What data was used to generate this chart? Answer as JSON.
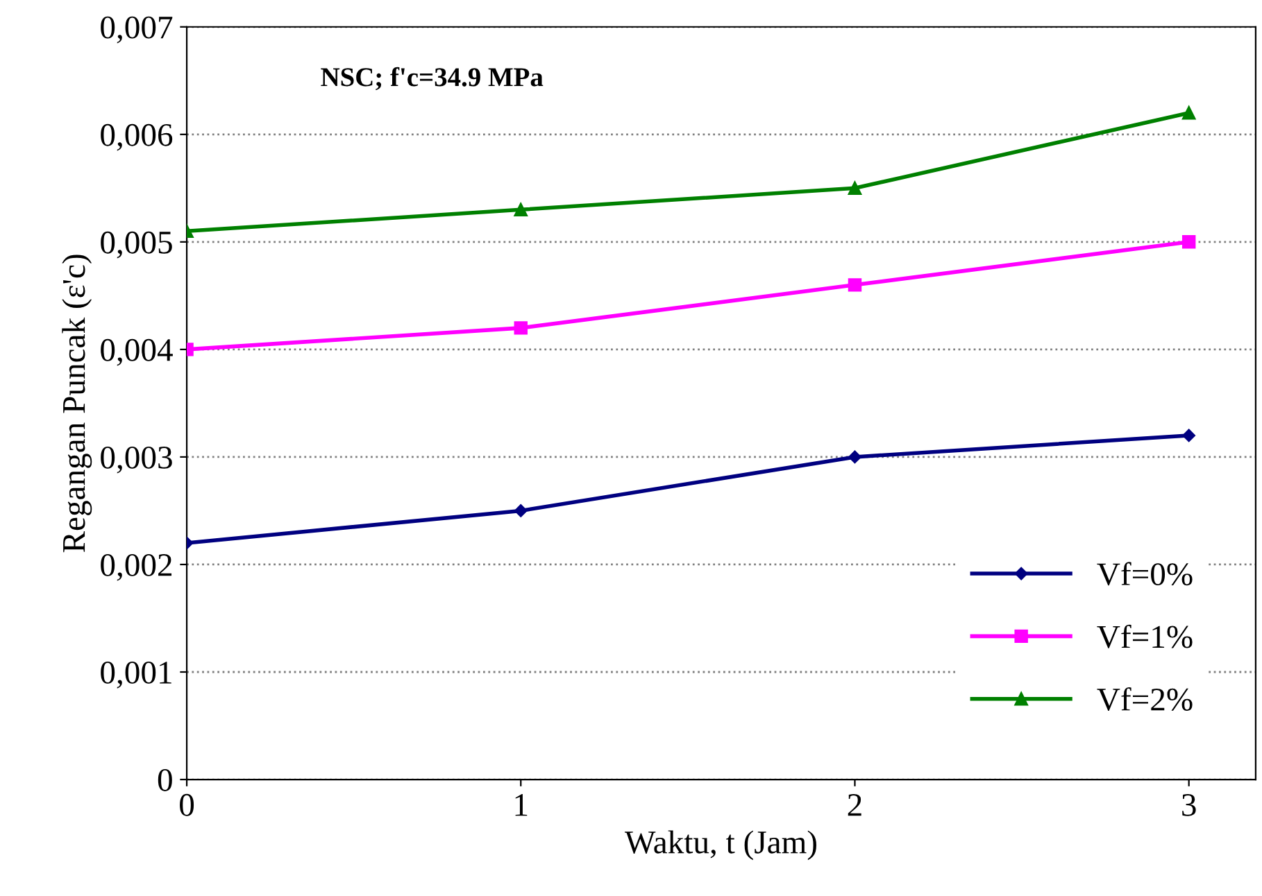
{
  "chart_data": {
    "type": "line",
    "xlabel": "Waktu, t (Jam)",
    "ylabel": "Regangan Puncak (ε'c)",
    "annotations": [
      "NSC; f'c=34.9 MPa"
    ],
    "x": [
      0,
      1,
      2,
      3
    ],
    "series": [
      {
        "name": "Vf=0%",
        "color": "#000080",
        "marker": "diamond",
        "values": [
          0.0022,
          0.0025,
          0.003,
          0.0032
        ]
      },
      {
        "name": "Vf=1%",
        "color": "#ff00ff",
        "marker": "square",
        "values": [
          0.004,
          0.0042,
          0.0046,
          0.005
        ]
      },
      {
        "name": "Vf=2%",
        "color": "#008000",
        "marker": "triangle",
        "values": [
          0.0051,
          0.0053,
          0.0055,
          0.0062
        ]
      }
    ],
    "xlim": [
      0,
      3.2
    ],
    "xticks": [
      0,
      1,
      2,
      3
    ],
    "ylim": [
      0,
      0.007
    ],
    "yticks": [
      0,
      {
        "value": 0.001,
        "label": "0,001"
      },
      {
        "value": 0.002,
        "label": "0,002"
      },
      {
        "value": 0.003,
        "label": "0,003"
      },
      {
        "value": 0.004,
        "label": "0,004"
      },
      {
        "value": 0.005,
        "label": "0,005"
      },
      {
        "value": 0.006,
        "label": "0,006"
      },
      {
        "value": 0.007,
        "label": "0,007"
      }
    ],
    "grid": "y",
    "legend": "bottom right",
    "line_style": "solid"
  }
}
